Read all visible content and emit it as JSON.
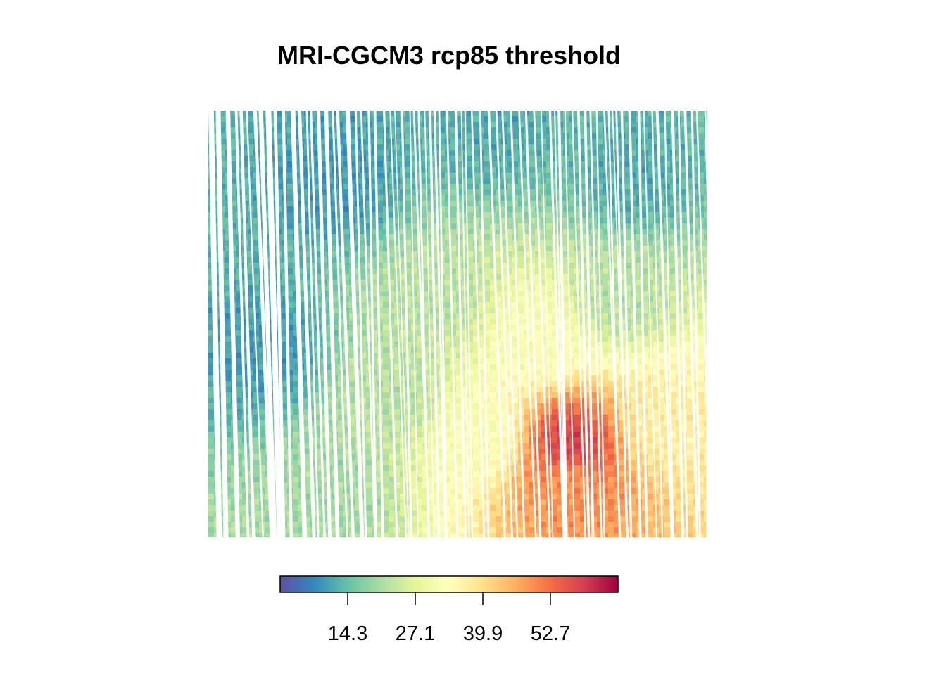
{
  "title": "MRI-CGCM3 rcp85 threshold",
  "chart_data": {
    "type": "heatmap",
    "title": "MRI-CGCM3 rcp85 threshold",
    "xlabel": "",
    "ylabel": "",
    "axes_visible": false,
    "grid": false,
    "colorbar": {
      "orientation": "horizontal",
      "placement": "bottom",
      "palette": "Spectral (reversed)",
      "range": [
        1.5,
        65.5
      ],
      "ticks": [
        14.3,
        27.1,
        39.9,
        52.7
      ],
      "tick_labels": [
        "14.3",
        "27.1",
        "39.9",
        "52.7"
      ],
      "colors": [
        "#5E4FA2",
        "#3288BD",
        "#66C2A5",
        "#ABDDA4",
        "#E6F598",
        "#FFFFBF",
        "#FEE08B",
        "#FDAE61",
        "#F46D43",
        "#D53E4F",
        "#9E0142"
      ]
    },
    "value_regions": [
      {
        "region": "north",
        "approx_value": 12
      },
      {
        "region": "northwest",
        "approx_value": 10
      },
      {
        "region": "central",
        "approx_value": 22
      },
      {
        "region": "center-east",
        "approx_value": 32
      },
      {
        "region": "southeast",
        "approx_value": 37
      },
      {
        "region": "south-central hotspot",
        "approx_value": 49
      },
      {
        "region": "hotspot peak cells",
        "approx_value": 58
      },
      {
        "region": "southwest",
        "approx_value": 20
      }
    ]
  }
}
